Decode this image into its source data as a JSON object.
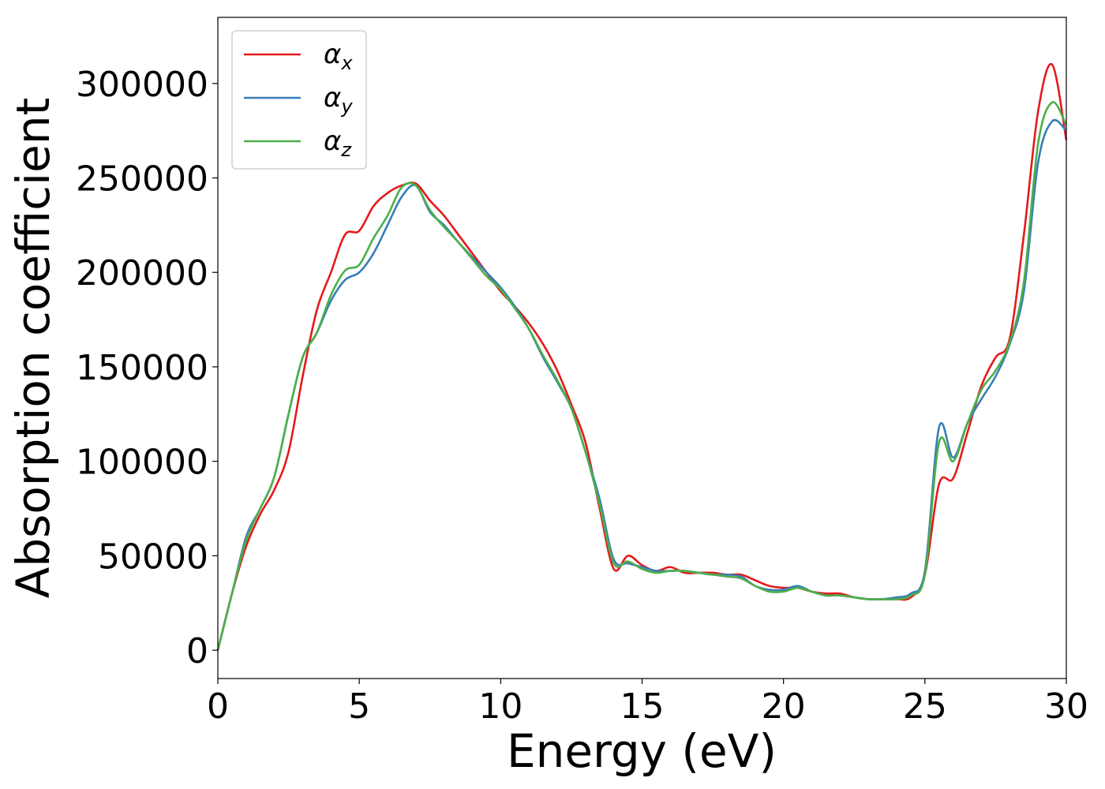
{
  "chart_data": {
    "type": "line",
    "xlabel": "Energy (eV)",
    "ylabel": "Absorption coefficient",
    "xlim": [
      0,
      30
    ],
    "ylim": [
      -15000,
      335000
    ],
    "xticks": [
      0,
      5,
      10,
      15,
      20,
      25,
      30
    ],
    "yticks": [
      0,
      50000,
      100000,
      150000,
      200000,
      250000,
      300000
    ],
    "grid": false,
    "legend_position": "top-left",
    "x": [
      0,
      0.5,
      1,
      1.5,
      2,
      2.5,
      3,
      3.5,
      4,
      4.5,
      5,
      5.5,
      6,
      6.5,
      7,
      7.5,
      8,
      8.5,
      9,
      9.5,
      10,
      10.5,
      11,
      11.5,
      12,
      12.5,
      13,
      13.5,
      14,
      14.5,
      15,
      15.5,
      16,
      16.5,
      17,
      17.5,
      18,
      18.5,
      19,
      19.5,
      20,
      20.5,
      21,
      21.5,
      22,
      22.5,
      23,
      23.5,
      24,
      24.5,
      25,
      25.5,
      26,
      26.5,
      27,
      27.5,
      28,
      28.5,
      29,
      29.5,
      30
    ],
    "series": [
      {
        "name": "x",
        "color": "#e41a1c",
        "values": [
          0,
          30000,
          55000,
          72000,
          85000,
          105000,
          145000,
          180000,
          200000,
          220000,
          222000,
          235000,
          242000,
          246000,
          247000,
          238000,
          230000,
          220000,
          210000,
          200000,
          190000,
          182000,
          173000,
          162000,
          148000,
          130000,
          110000,
          75000,
          43000,
          50000,
          45000,
          42000,
          44000,
          41000,
          41000,
          41000,
          40000,
          40000,
          37000,
          34000,
          33000,
          33000,
          31000,
          30000,
          30000,
          28000,
          27000,
          27000,
          27000,
          28000,
          40000,
          88000,
          91000,
          115000,
          140000,
          155000,
          165000,
          220000,
          285000,
          310000,
          270000
        ]
      },
      {
        "name": "y",
        "color": "#377eb8",
        "values": [
          0,
          30000,
          60000,
          75000,
          92000,
          125000,
          155000,
          168000,
          185000,
          196000,
          200000,
          210000,
          225000,
          240000,
          246000,
          232000,
          225000,
          216000,
          208000,
          200000,
          192000,
          182000,
          170000,
          155000,
          142000,
          128000,
          105000,
          80000,
          48000,
          46000,
          44000,
          42000,
          42000,
          42000,
          41000,
          40000,
          40000,
          39000,
          34000,
          32000,
          32000,
          34000,
          31000,
          29000,
          29000,
          28000,
          27000,
          27000,
          28000,
          30000,
          42000,
          118000,
          102000,
          120000,
          133000,
          145000,
          162000,
          190000,
          258000,
          280000,
          275000
        ]
      },
      {
        "name": "z",
        "color": "#4daf4a",
        "values": [
          0,
          30000,
          58000,
          75000,
          92000,
          125000,
          155000,
          168000,
          188000,
          201000,
          204000,
          218000,
          230000,
          245000,
          246000,
          233000,
          224000,
          216000,
          207000,
          198000,
          191000,
          181000,
          170000,
          156000,
          143000,
          128000,
          105000,
          77000,
          46000,
          47000,
          43000,
          41000,
          42000,
          42000,
          41000,
          40000,
          39000,
          38000,
          34000,
          31000,
          31000,
          33000,
          31000,
          29000,
          29000,
          28000,
          27000,
          27000,
          27000,
          29000,
          40000,
          110000,
          100000,
          120000,
          138000,
          148000,
          163000,
          195000,
          268000,
          290000,
          278000
        ]
      }
    ],
    "legend": [
      {
        "symbol": "α",
        "sub": "x",
        "color": "#e41a1c"
      },
      {
        "symbol": "α",
        "sub": "y",
        "color": "#377eb8"
      },
      {
        "symbol": "α",
        "sub": "z",
        "color": "#4daf4a"
      }
    ]
  }
}
